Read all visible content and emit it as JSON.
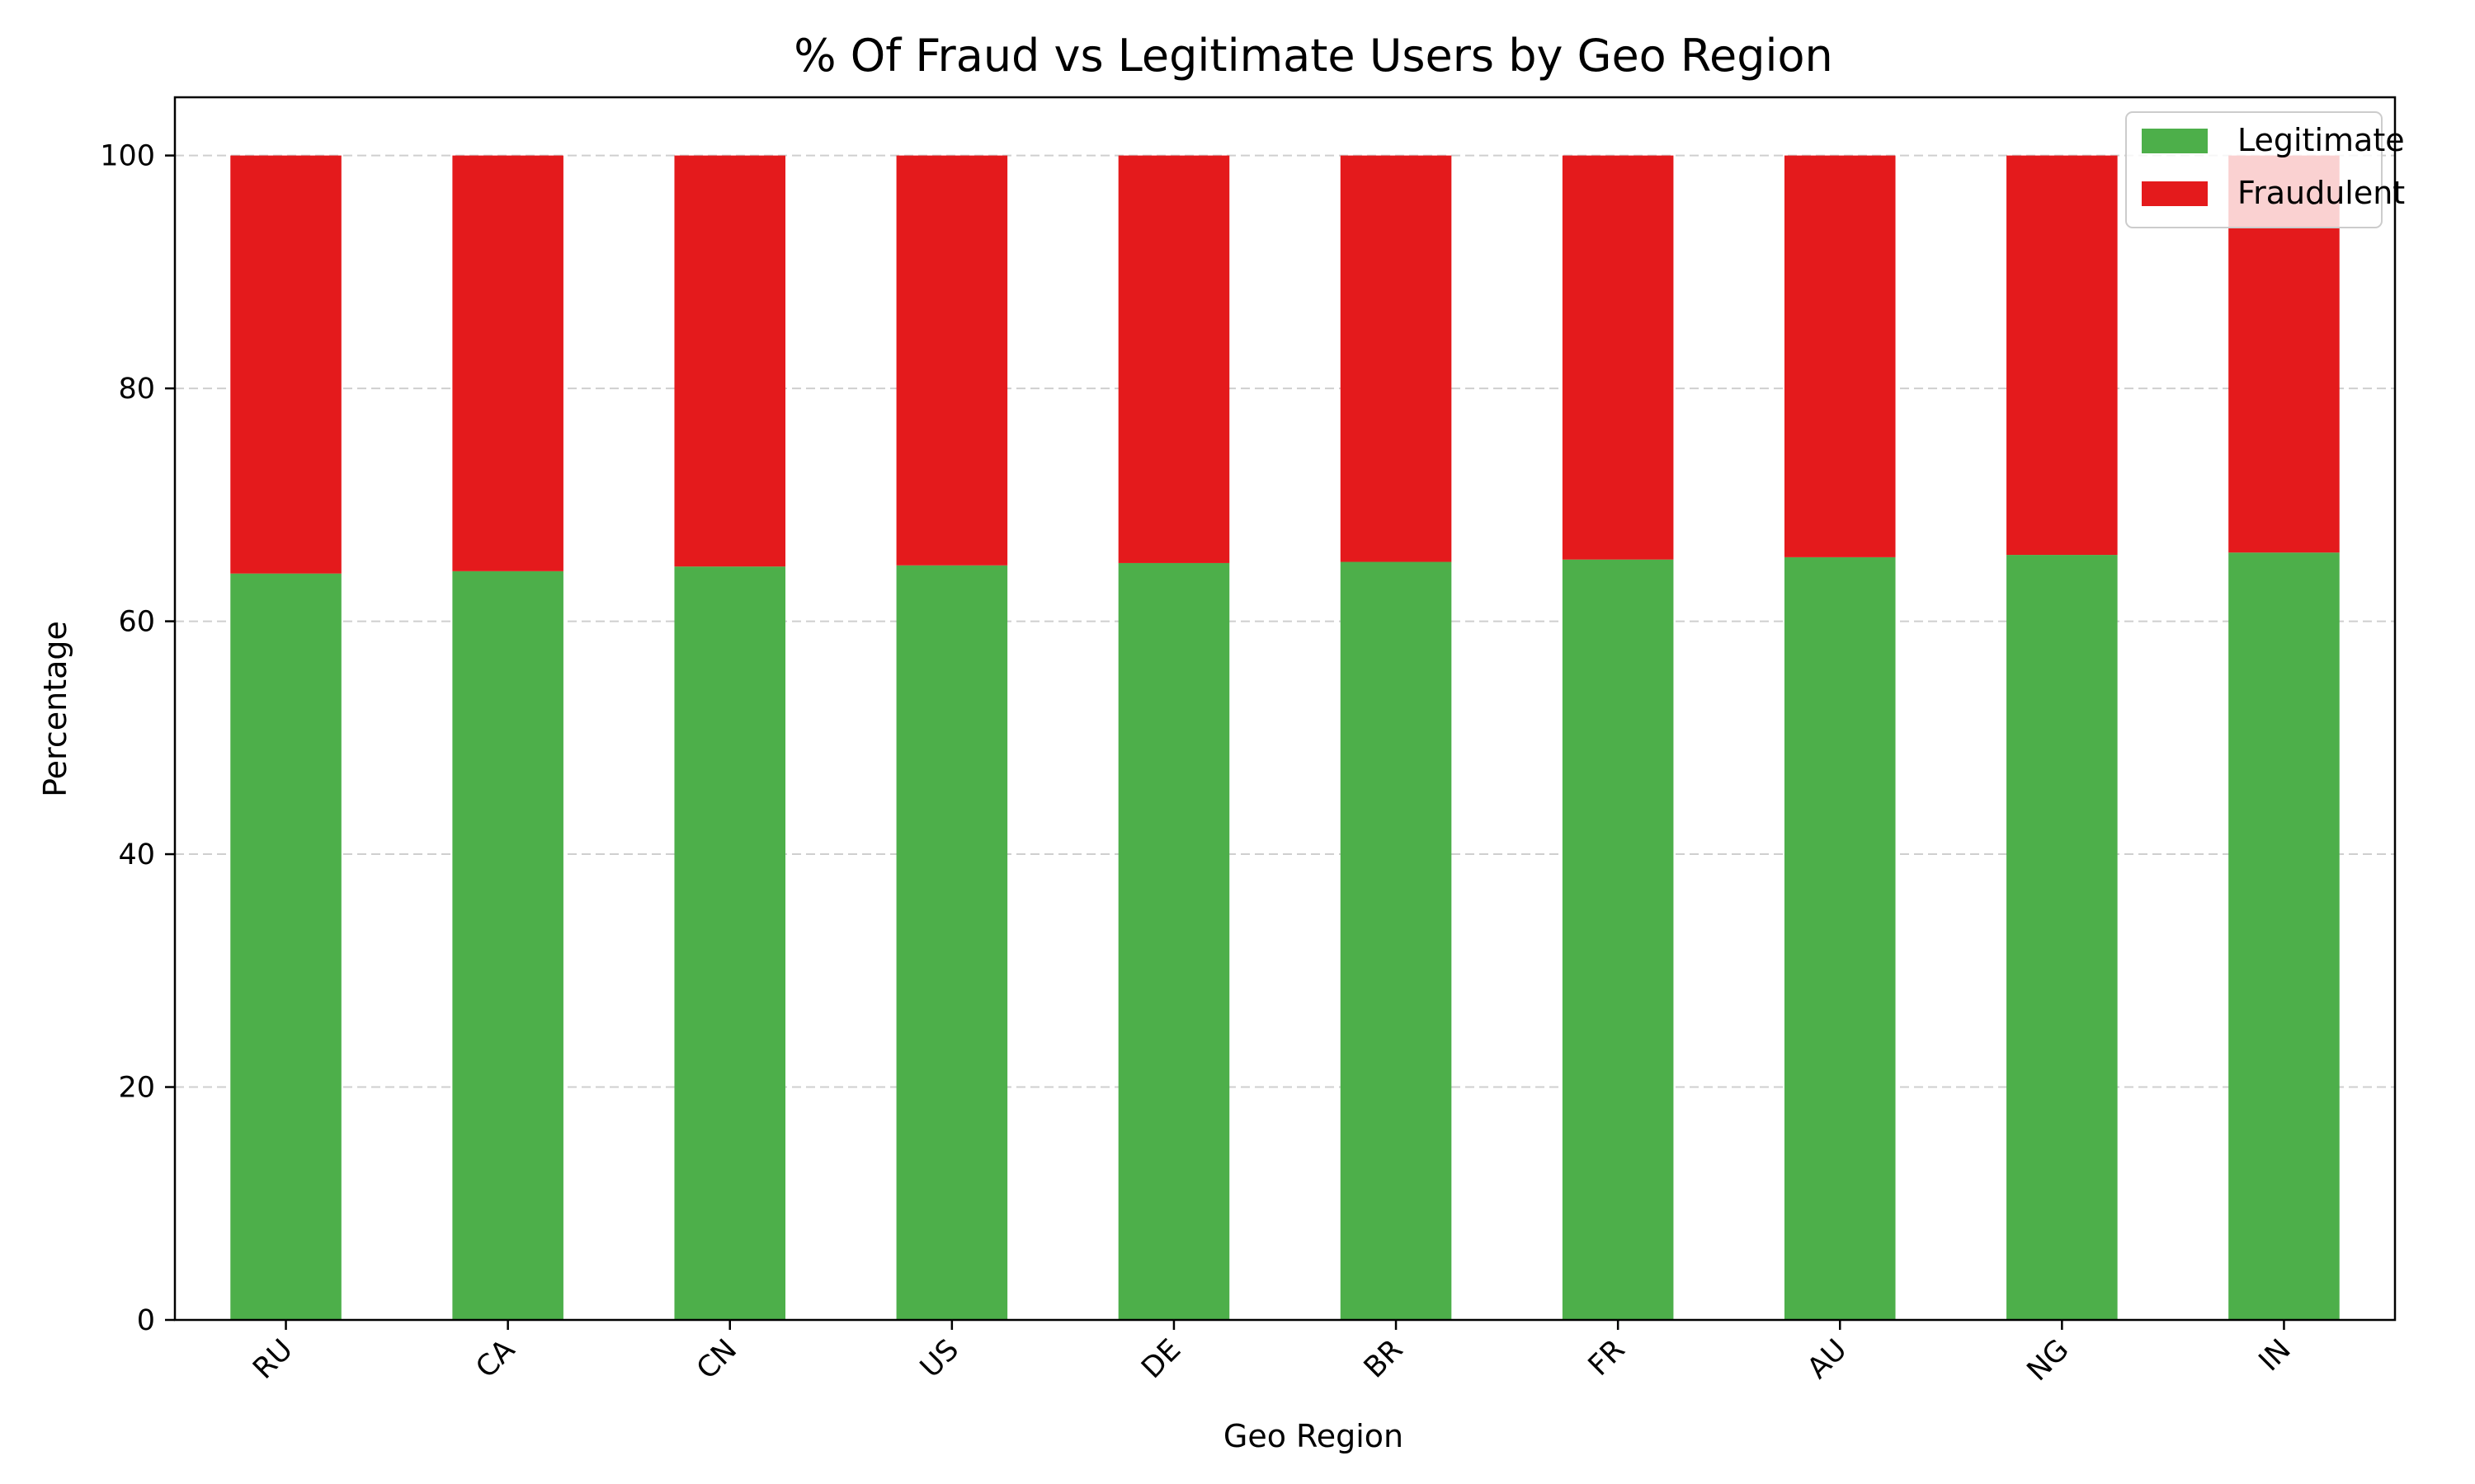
{
  "chart_data": {
    "type": "bar",
    "stacked": true,
    "title": "% Of Fraud vs Legitimate Users by Geo Region",
    "xlabel": "Geo Region",
    "ylabel": "Percentage",
    "categories": [
      "RU",
      "CA",
      "CN",
      "US",
      "DE",
      "BR",
      "FR",
      "AU",
      "NG",
      "IN"
    ],
    "series": [
      {
        "name": "Legitimate",
        "color": "#4daf4a",
        "values": [
          64.1,
          64.3,
          64.7,
          64.8,
          65.0,
          65.1,
          65.3,
          65.5,
          65.7,
          65.9
        ]
      },
      {
        "name": "Fraudulent",
        "color": "#e41a1c",
        "values": [
          35.9,
          35.7,
          35.3,
          35.2,
          35.0,
          34.9,
          34.7,
          34.5,
          34.3,
          34.1
        ]
      }
    ],
    "ylim": [
      0,
      105
    ],
    "yticks": [
      0,
      20,
      40,
      60,
      80,
      100
    ],
    "grid": "y-dashed",
    "legend": "top-right"
  }
}
